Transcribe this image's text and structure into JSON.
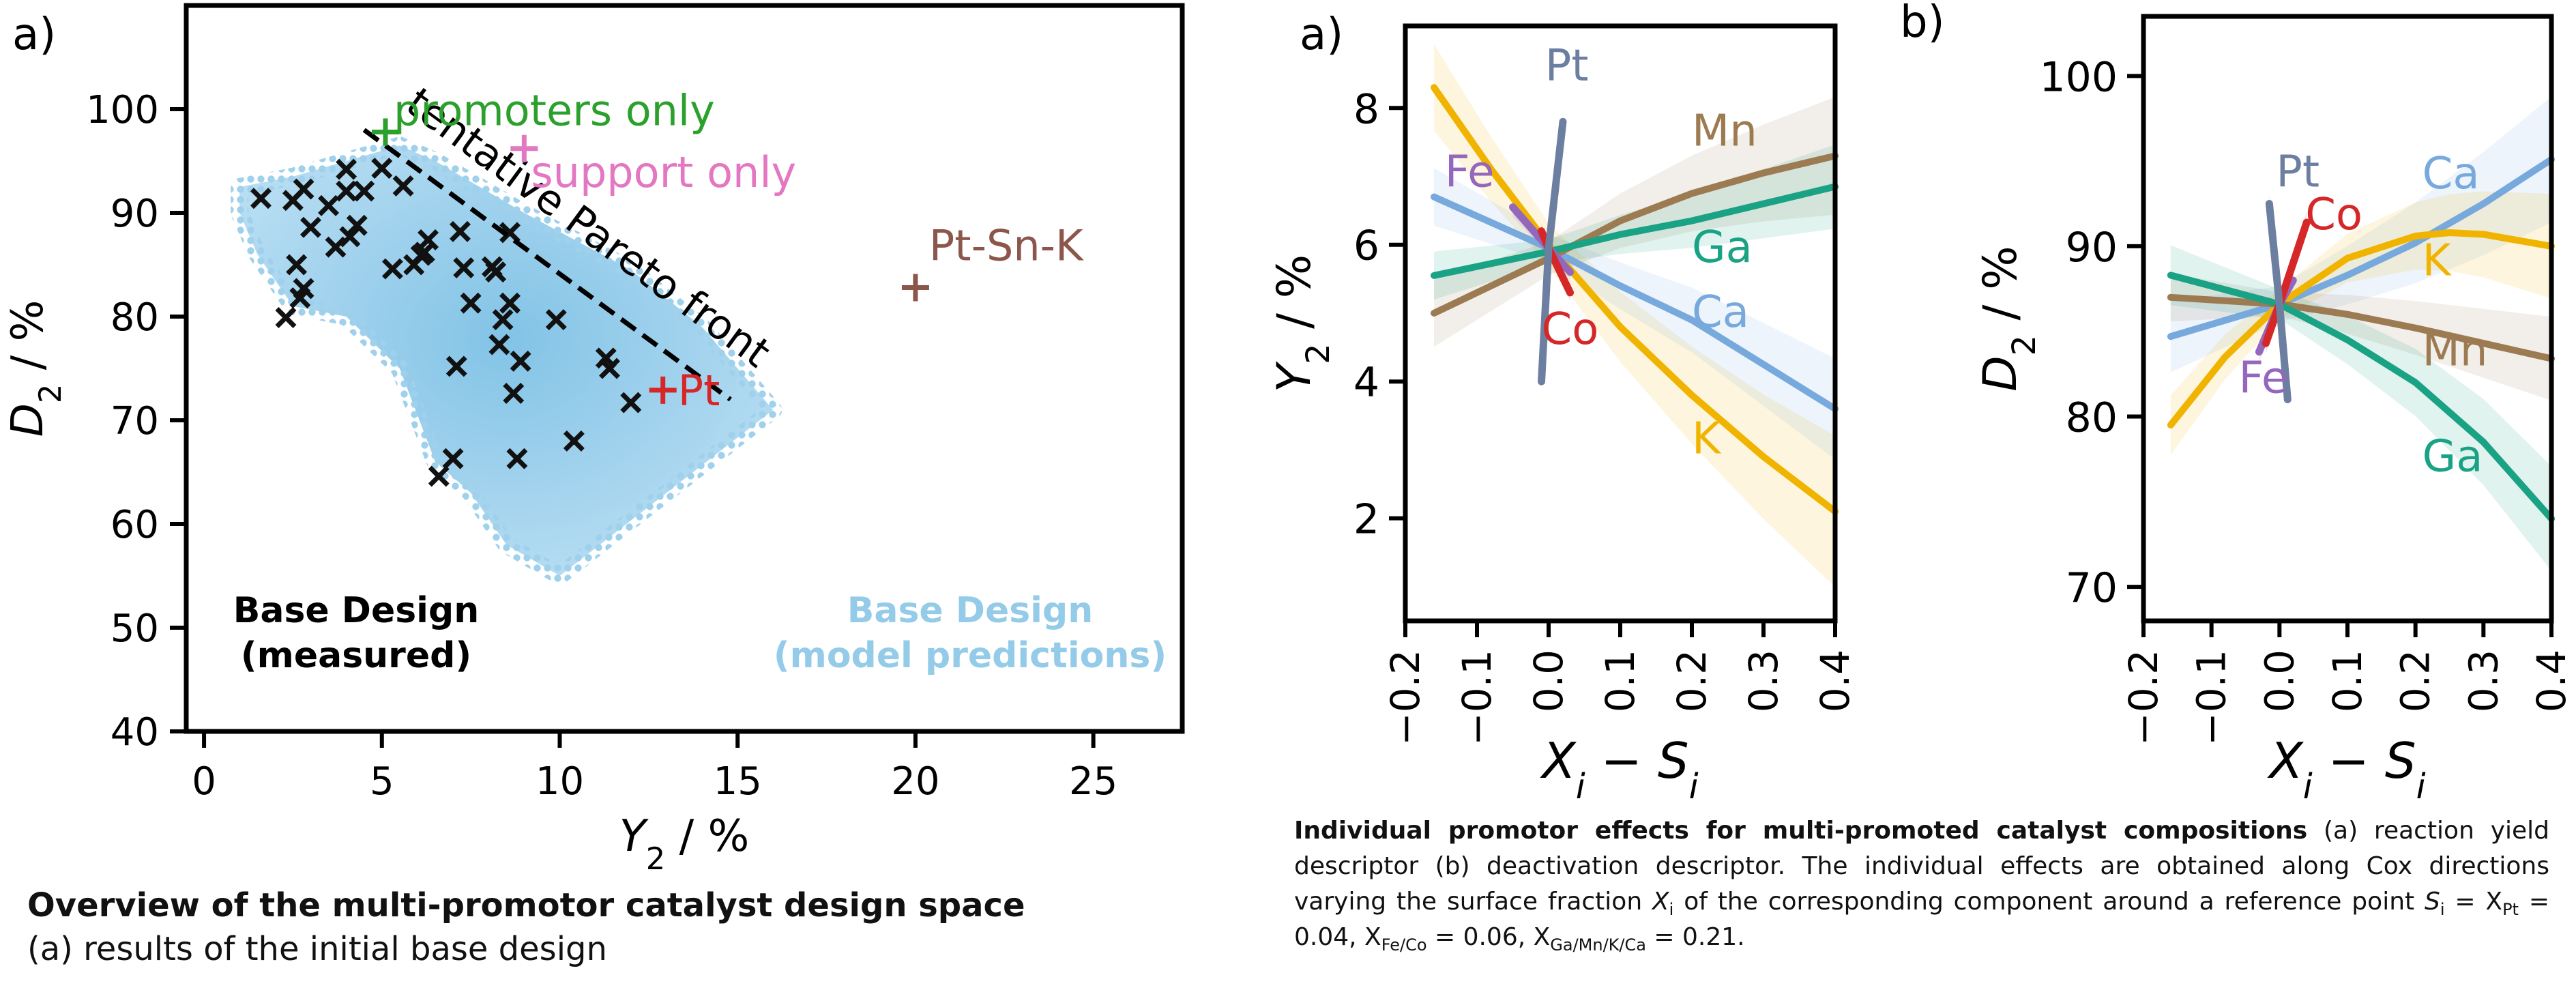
{
  "colors": {
    "cloud": "#93cbe8",
    "cloud_light": "#b9def3",
    "measured": "#111111",
    "promoters": "#2ca02c",
    "support": "#e377c2",
    "ptsnk": "#8c564b",
    "pt_marker": "#d62728",
    "pt_curve": "#6d7fa1",
    "fe": "#9467bd",
    "co": "#d62728",
    "mn": "#9c7b52",
    "ga": "#1aa284",
    "ca": "#77a9dd",
    "k": "#f0b400"
  },
  "chart_data": [
    {
      "id": "design-space",
      "type": "scatter",
      "panel_label": "a)",
      "xlabel": "Y",
      "xlabel_sub": "2",
      "xlabel_unit": " / %",
      "ylabel": "D",
      "ylabel_sub": "2",
      "ylabel_unit": " / %",
      "xlim": [
        -0.5,
        27.5
      ],
      "ylim": [
        40,
        110
      ],
      "xticks": [
        0,
        5,
        10,
        15,
        20,
        25
      ],
      "yticks": [
        40,
        50,
        60,
        70,
        80,
        90,
        100
      ],
      "prediction_region": [
        [
          1.0,
          92.5
        ],
        [
          2.5,
          93.5
        ],
        [
          4.0,
          95.0
        ],
        [
          5.5,
          96.5
        ],
        [
          6.5,
          95.0
        ],
        [
          9.0,
          90.0
        ],
        [
          12.0,
          84.5
        ],
        [
          14.0,
          79.0
        ],
        [
          16.0,
          71.0
        ],
        [
          10.0,
          55.0
        ],
        [
          8.5,
          58.0
        ],
        [
          7.5,
          63.0
        ],
        [
          6.5,
          66.0
        ],
        [
          5.5,
          75.0
        ],
        [
          4.0,
          80.0
        ],
        [
          2.5,
          81.0
        ],
        [
          1.5,
          86.0
        ],
        [
          1.0,
          90.0
        ]
      ],
      "measured": [
        [
          1.6,
          91.4
        ],
        [
          2.3,
          79.9
        ],
        [
          2.5,
          91.2
        ],
        [
          2.6,
          85.0
        ],
        [
          2.7,
          81.8
        ],
        [
          2.8,
          82.7
        ],
        [
          2.8,
          92.3
        ],
        [
          3.0,
          88.6
        ],
        [
          3.5,
          90.7
        ],
        [
          3.7,
          86.7
        ],
        [
          4.0,
          92.1
        ],
        [
          4.0,
          94.2
        ],
        [
          4.1,
          87.7
        ],
        [
          4.3,
          88.8
        ],
        [
          4.5,
          92.1
        ],
        [
          5.0,
          94.3
        ],
        [
          5.3,
          84.6
        ],
        [
          5.6,
          92.6
        ],
        [
          5.9,
          85.0
        ],
        [
          6.1,
          85.9
        ],
        [
          6.2,
          86.2
        ],
        [
          6.3,
          87.4
        ],
        [
          6.6,
          64.6
        ],
        [
          7.0,
          66.3
        ],
        [
          7.1,
          75.2
        ],
        [
          7.2,
          88.2
        ],
        [
          7.3,
          84.7
        ],
        [
          7.5,
          81.3
        ],
        [
          8.1,
          84.8
        ],
        [
          8.2,
          84.3
        ],
        [
          8.3,
          77.3
        ],
        [
          8.4,
          79.7
        ],
        [
          8.6,
          81.3
        ],
        [
          8.6,
          88.1
        ],
        [
          8.7,
          72.6
        ],
        [
          8.8,
          66.3
        ],
        [
          8.9,
          75.7
        ],
        [
          9.9,
          79.7
        ],
        [
          10.4,
          68.0
        ],
        [
          11.3,
          76.0
        ],
        [
          11.4,
          75.0
        ],
        [
          12.0,
          71.7
        ]
      ],
      "annotations": [
        {
          "label": "promoters only",
          "x": 5.1,
          "y": 97.8,
          "color_key": "promoters"
        },
        {
          "label": "support only",
          "x": 9.0,
          "y": 96.2,
          "color_key": "support"
        },
        {
          "label": "Pt-Sn-K",
          "x": 20.0,
          "y": 82.8,
          "color_key": "ptsnk"
        },
        {
          "label": "Pt",
          "x": 12.9,
          "y": 72.9,
          "color_key": "pt_marker"
        }
      ],
      "pareto_front": {
        "label": "tentative Pareto front",
        "from": [
          4.5,
          98.0
        ],
        "to": [
          14.8,
          72.0
        ]
      },
      "legend": {
        "measured_line1": "Base Design",
        "measured_line2": "(measured)",
        "model_line1": "Base Design",
        "model_line2": "(model predictions)"
      }
    },
    {
      "id": "yield-effects",
      "type": "line",
      "panel_label": "a)",
      "xlabel": "X",
      "xlabel_rest": "i",
      "xlabel_minus": " − S",
      "xlabel_rest2": "i",
      "ylabel": "Y",
      "ylabel_sub": "2",
      "ylabel_unit": " / %",
      "xlim": [
        -0.2,
        0.4
      ],
      "ylim": [
        0.5,
        9.2
      ],
      "xticks": [
        -0.2,
        -0.1,
        0.0,
        0.1,
        0.2,
        0.3,
        0.4
      ],
      "xtick_labels": [
        "−0.2",
        "−0.1",
        "0.0",
        "0.1",
        "0.2",
        "0.3",
        "0.4"
      ],
      "yticks": [
        2,
        4,
        6,
        8
      ],
      "series": [
        {
          "name": "K",
          "color_key": "k",
          "x": [
            -0.16,
            -0.08,
            0.0,
            0.1,
            0.2,
            0.3,
            0.4
          ],
          "y": [
            8.3,
            7.1,
            6.0,
            4.8,
            3.8,
            2.9,
            2.1
          ],
          "band": 0.9
        },
        {
          "name": "Ca",
          "color_key": "ca",
          "x": [
            -0.16,
            0.0,
            0.1,
            0.2,
            0.3,
            0.4
          ],
          "y": [
            6.7,
            5.95,
            5.4,
            4.9,
            4.25,
            3.6
          ],
          "band": 0.6
        },
        {
          "name": "Mn",
          "color_key": "mn",
          "x": [
            -0.16,
            0.0,
            0.1,
            0.2,
            0.3,
            0.4
          ],
          "y": [
            5.0,
            5.8,
            6.35,
            6.75,
            7.05,
            7.3
          ],
          "band": 0.7
        },
        {
          "name": "Ga",
          "color_key": "ga",
          "x": [
            -0.16,
            0.0,
            0.1,
            0.2,
            0.3,
            0.4
          ],
          "y": [
            5.55,
            5.9,
            6.15,
            6.35,
            6.6,
            6.85
          ],
          "band": 0.5
        },
        {
          "name": "Fe",
          "color_key": "fe",
          "x": [
            -0.05,
            0.0,
            0.03
          ],
          "y": [
            6.55,
            5.95,
            5.6
          ],
          "band": 0.3
        },
        {
          "name": "Co",
          "color_key": "co",
          "x": [
            -0.01,
            0.0,
            0.03
          ],
          "y": [
            6.2,
            5.95,
            5.3
          ],
          "band": 0.3
        },
        {
          "name": "Pt",
          "color_key": "pt_curve",
          "x": [
            -0.01,
            0.0,
            0.02
          ],
          "y": [
            4.0,
            5.95,
            7.8
          ],
          "band": 0.3
        }
      ],
      "labels": [
        {
          "text": "Pt",
          "x": -0.005,
          "y": 8.4,
          "color_key": "pt_curve"
        },
        {
          "text": "Fe",
          "x": -0.145,
          "y": 6.85,
          "color_key": "fe"
        },
        {
          "text": "Co",
          "x": -0.01,
          "y": 4.55,
          "color_key": "co"
        },
        {
          "text": "Mn",
          "x": 0.2,
          "y": 7.45,
          "color_key": "mn"
        },
        {
          "text": "Ga",
          "x": 0.2,
          "y": 5.75,
          "color_key": "ga"
        },
        {
          "text": "Ca",
          "x": 0.2,
          "y": 4.8,
          "color_key": "ca"
        },
        {
          "text": "K",
          "x": 0.2,
          "y": 2.95,
          "color_key": "k"
        }
      ]
    },
    {
      "id": "deactivation-effects",
      "type": "line",
      "panel_label": "b)",
      "xlabel": "X",
      "xlabel_rest": "i",
      "xlabel_minus": " − S",
      "xlabel_rest2": "i",
      "ylabel": "D",
      "ylabel_sub": "2",
      "ylabel_unit": " / %",
      "xlim": [
        -0.2,
        0.4
      ],
      "ylim": [
        68,
        103.5
      ],
      "xticks": [
        -0.2,
        -0.1,
        0.0,
        0.1,
        0.2,
        0.3,
        0.4
      ],
      "xtick_labels": [
        "−0.2",
        "−0.1",
        "0.0",
        "0.1",
        "0.2",
        "0.3",
        "0.4"
      ],
      "yticks": [
        70,
        80,
        90,
        100
      ],
      "series": [
        {
          "name": "Ca",
          "color_key": "ca",
          "x": [
            -0.16,
            0.0,
            0.1,
            0.2,
            0.3,
            0.4
          ],
          "y": [
            84.7,
            86.6,
            88.3,
            90.2,
            92.5,
            95.1
          ],
          "band": 3.0
        },
        {
          "name": "K",
          "color_key": "k",
          "x": [
            -0.16,
            -0.08,
            0.0,
            0.1,
            0.2,
            0.25,
            0.3,
            0.4
          ],
          "y": [
            79.5,
            83.5,
            86.6,
            89.3,
            90.6,
            90.8,
            90.7,
            90.0
          ],
          "band": 2.5
        },
        {
          "name": "Mn",
          "color_key": "mn",
          "x": [
            -0.16,
            0.0,
            0.1,
            0.2,
            0.3,
            0.4
          ],
          "y": [
            87.0,
            86.6,
            86.0,
            85.2,
            84.3,
            83.4
          ],
          "band": 2.0
        },
        {
          "name": "Ga",
          "color_key": "ga",
          "x": [
            -0.16,
            0.0,
            0.1,
            0.2,
            0.3,
            0.4
          ],
          "y": [
            88.3,
            86.6,
            84.5,
            82.0,
            78.5,
            74.0
          ],
          "band": 2.5
        },
        {
          "name": "Fe",
          "color_key": "fe",
          "x": [
            -0.03,
            0.0,
            0.02
          ],
          "y": [
            83.8,
            86.6,
            88.0
          ],
          "band": 1.5
        },
        {
          "name": "Co",
          "color_key": "co",
          "x": [
            -0.02,
            0.0,
            0.04
          ],
          "y": [
            84.3,
            86.6,
            91.4
          ],
          "band": 1.5
        },
        {
          "name": "Pt",
          "color_key": "pt_curve",
          "x": [
            -0.015,
            0.0,
            0.012
          ],
          "y": [
            92.5,
            86.6,
            81.0
          ],
          "band": 1.5
        }
      ],
      "labels": [
        {
          "text": "Pt",
          "x": -0.005,
          "y": 93.5,
          "color_key": "pt_curve"
        },
        {
          "text": "Co",
          "x": 0.038,
          "y": 91.0,
          "color_key": "co"
        },
        {
          "text": "Fe",
          "x": -0.06,
          "y": 81.4,
          "color_key": "fe"
        },
        {
          "text": "Ca",
          "x": 0.21,
          "y": 93.4,
          "color_key": "ca"
        },
        {
          "text": "K",
          "x": 0.21,
          "y": 88.3,
          "color_key": "k"
        },
        {
          "text": "Mn",
          "x": 0.21,
          "y": 83.0,
          "color_key": "mn"
        },
        {
          "text": "Ga",
          "x": 0.21,
          "y": 76.8,
          "color_key": "ga"
        }
      ]
    }
  ],
  "captions": {
    "left_title": "Overview of the multi-promotor catalyst design space",
    "left_body": "(a) results of the initial base design",
    "right_title": "Individual promotor effects for multi-promoted catalyst compositions",
    "right_body_1": " (a) reaction yield descriptor (b) deactivation descriptor. The individual effects are obtained along Cox directions varying the surface fraction ",
    "right_var_X": "X",
    "right_var_i": "i",
    "right_body_2": " of the corresponding component around a reference point ",
    "right_var_S": "S",
    "right_var_i2": "i",
    "right_body_3": " = X",
    "right_sub_pt": "Pt",
    "right_body_4": " = 0.04, X",
    "right_sub_feco": "Fe/Co",
    "right_body_5": " = 0.06, X",
    "right_sub_rest": "Ga/Mn/K/Ca",
    "right_body_6": " = 0.21."
  }
}
